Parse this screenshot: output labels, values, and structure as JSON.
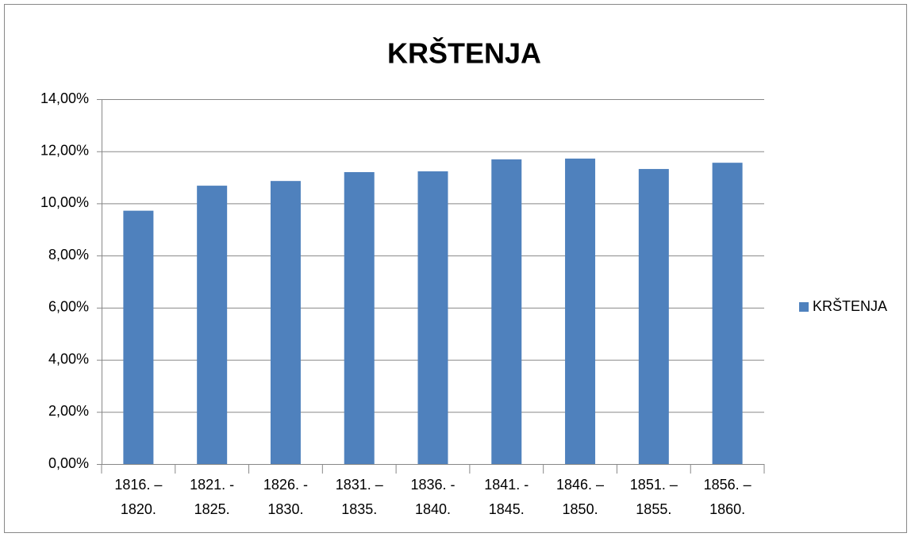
{
  "chart_data": {
    "type": "bar",
    "title": "KRŠTENJA",
    "categories": [
      "1816. – 1820.",
      "1821. - 1825.",
      "1826. - 1830.",
      "1831. – 1835.",
      "1836. - 1840.",
      "1841. - 1845.",
      "1846. – 1850.",
      "1851. – 1855.",
      "1856. – 1860."
    ],
    "series": [
      {
        "name": "KRŠTENJA",
        "color": "#4f81bd",
        "values": [
          9.72,
          10.68,
          10.86,
          11.2,
          11.23,
          11.69,
          11.72,
          11.32,
          11.56
        ]
      }
    ],
    "ylim": [
      0,
      14
    ],
    "yticks": [
      {
        "value": 0,
        "label": "0,00%"
      },
      {
        "value": 2,
        "label": "2,00%"
      },
      {
        "value": 4,
        "label": "4,00%"
      },
      {
        "value": 6,
        "label": "6,00%"
      },
      {
        "value": 8,
        "label": "8,00%"
      },
      {
        "value": 10,
        "label": "10,00%"
      },
      {
        "value": 12,
        "label": "12,00%"
      },
      {
        "value": 14,
        "label": "14,00%"
      }
    ],
    "grid": true,
    "legend": "right"
  }
}
